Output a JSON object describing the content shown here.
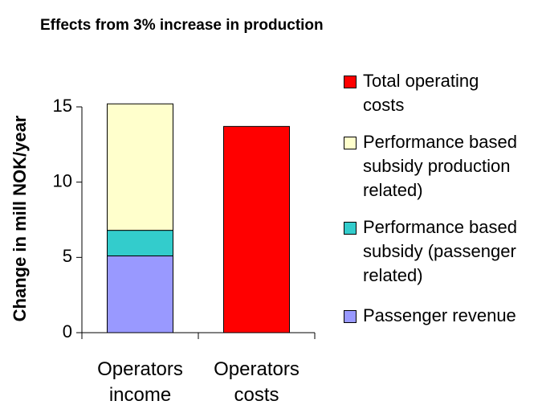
{
  "chart_data": {
    "type": "stacked_bar",
    "title": "Effects from 3% increase in production",
    "y_label": "Change in mill NOK/year",
    "categories": [
      "Operators income",
      "Operators costs"
    ],
    "series": [
      {
        "name": "Passenger revenue",
        "color": "#9999ff",
        "values": [
          5.1,
          null
        ]
      },
      {
        "name": "Performance based subsidy (passenger related)",
        "color": "#33cccc",
        "values": [
          1.7,
          null
        ]
      },
      {
        "name": "Performance based subsidy production related)",
        "color": "#ffffcc",
        "values": [
          8.4,
          null
        ]
      },
      {
        "name": "Total operating costs",
        "color": "#ff0000",
        "values": [
          null,
          13.7
        ]
      }
    ],
    "ylim": [
      0,
      15.5
    ],
    "yticks": [
      0,
      5,
      10,
      15
    ],
    "grid": false,
    "legend": "right"
  }
}
